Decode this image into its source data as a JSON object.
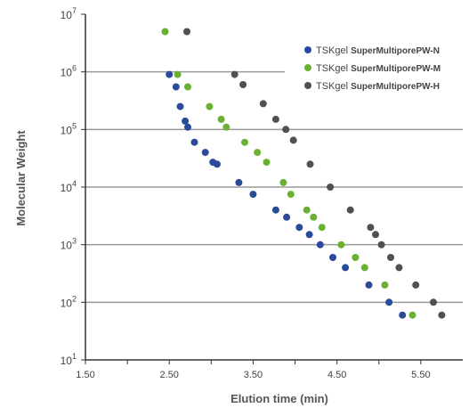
{
  "chart_data": {
    "type": "scatter",
    "xlabel": "Elution time (min)",
    "ylabel": "Molecular Weight",
    "xlim": [
      1.5,
      6.0
    ],
    "ylim_log10": [
      1,
      7
    ],
    "y_scale": "log",
    "x_ticks": [
      "1.50",
      "2.50",
      "3.50",
      "4.50",
      "5.50"
    ],
    "x_tick_values": [
      1.5,
      2.5,
      3.5,
      4.5,
      5.5
    ],
    "y_tick_exponents": [
      "1",
      "2",
      "3",
      "4",
      "5",
      "6",
      "7"
    ],
    "y_tick_base": "10",
    "grid": "horizontal",
    "legend_position": "top-right",
    "series": [
      {
        "name_prefix": "TSKgel ",
        "name_suffix": "SuperMultiporePW-N",
        "color": "#2a4a9a",
        "x": [
          2.5,
          2.58,
          2.63,
          2.69,
          2.72,
          2.8,
          2.93,
          3.02,
          3.07,
          3.33,
          3.5,
          3.77,
          3.9,
          4.05,
          4.17,
          4.3,
          4.45,
          4.6,
          4.88,
          5.12,
          5.28
        ],
        "y": [
          900000,
          550000,
          250000,
          140000,
          110000,
          60000,
          40000,
          27000,
          25000,
          12000,
          7500,
          4000,
          3000,
          2000,
          1500,
          1000,
          600,
          400,
          200,
          100,
          60
        ]
      },
      {
        "name_prefix": "TSKgel ",
        "name_suffix": "SuperMultiporePW-M",
        "color": "#6ab033",
        "x": [
          2.45,
          2.6,
          2.72,
          2.98,
          3.12,
          3.18,
          3.4,
          3.55,
          3.66,
          3.86,
          3.95,
          4.14,
          4.22,
          4.32,
          4.55,
          4.72,
          4.83,
          5.07,
          5.4
        ],
        "y": [
          5000000,
          900000,
          550000,
          250000,
          150000,
          110000,
          60000,
          40000,
          27000,
          12000,
          7500,
          4000,
          3000,
          2000,
          1000,
          600,
          400,
          200,
          60
        ]
      },
      {
        "name_prefix": "TSKgel ",
        "name_suffix": "SuperMultiporePW-H",
        "color": "#505050",
        "x": [
          2.71,
          3.28,
          3.38,
          3.62,
          3.77,
          3.89,
          3.98,
          4.18,
          4.42,
          4.66,
          4.9,
          4.96,
          5.03,
          5.14,
          5.24,
          5.44,
          5.65,
          5.75
        ],
        "y": [
          5000000,
          900000,
          600000,
          280000,
          150000,
          100000,
          65000,
          25000,
          10000,
          4000,
          2000,
          1500,
          1000,
          600,
          400,
          200,
          100,
          60
        ]
      }
    ]
  }
}
